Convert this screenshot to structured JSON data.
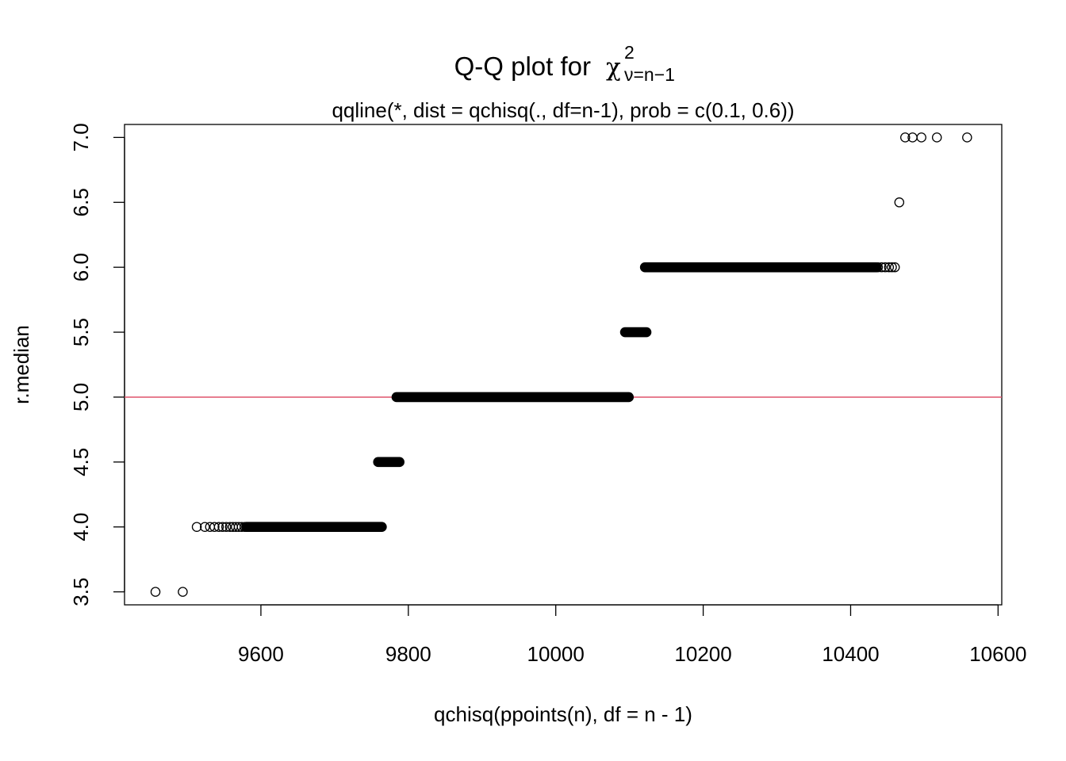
{
  "chart_data": {
    "type": "scatter",
    "title": {
      "text": "Q-Q plot for",
      "symbol": "χ",
      "superscript": "2",
      "subscript": "ν=n−1"
    },
    "subtitle": "qqline(*, dist = qchisq(., df=n-1), prob = c(0.1, 0.6))",
    "xlabel": "qchisq(ppoints(n), df = n - 1)",
    "ylabel": "r.median",
    "xlim": [
      9415,
      10605
    ],
    "ylim": [
      3.4,
      7.1
    ],
    "x_ticks": [
      9600,
      9800,
      10000,
      10200,
      10400,
      10600
    ],
    "x_tick_labels": [
      "9600",
      "9800",
      "10000",
      "10200",
      "10400",
      "10600"
    ],
    "y_ticks": [
      3.5,
      4.0,
      4.5,
      5.0,
      5.5,
      6.0,
      6.5,
      7.0
    ],
    "y_tick_labels": [
      "3.5",
      "4.0",
      "4.5",
      "5.0",
      "5.5",
      "6.0",
      "6.5",
      "7.0"
    ],
    "grid": false,
    "legend": "none",
    "point_color": "#000000",
    "qqline_color": "#DF536B",
    "qqline": {
      "slope": 0,
      "intercept": 5.0
    },
    "points": [
      {
        "x": 9457,
        "y": 3.5
      },
      {
        "x": 9494,
        "y": 3.5
      },
      {
        "x": 9513,
        "y": 4.0
      },
      {
        "x": 9524,
        "y": 4.0
      },
      {
        "x": 9531,
        "y": 4.0
      },
      {
        "x": 9537,
        "y": 4.0
      },
      {
        "x": 9543,
        "y": 4.0
      },
      {
        "x": 9548,
        "y": 4.0
      },
      {
        "x": 9553,
        "y": 4.0
      },
      {
        "x": 9558,
        "y": 4.0
      },
      {
        "x": 9562,
        "y": 4.0
      },
      {
        "x": 9566,
        "y": 4.0
      },
      {
        "x": 9570,
        "y": 4.0
      },
      {
        "x": 9574,
        "y": 4.0
      },
      {
        "x": 9578,
        "y": 4.0
      },
      {
        "x": 10437,
        "y": 6.0
      },
      {
        "x": 10442,
        "y": 6.0
      },
      {
        "x": 10447,
        "y": 6.0
      },
      {
        "x": 10452,
        "y": 6.0
      },
      {
        "x": 10456,
        "y": 6.0
      },
      {
        "x": 10460,
        "y": 6.0
      },
      {
        "x": 10466,
        "y": 6.5
      },
      {
        "x": 10474,
        "y": 7.0
      },
      {
        "x": 10484,
        "y": 7.0
      },
      {
        "x": 10496,
        "y": 7.0
      },
      {
        "x": 10517,
        "y": 7.0
      },
      {
        "x": 10558,
        "y": 7.0
      }
    ],
    "dense_runs": [
      {
        "y": 4.0,
        "x_from": 9580,
        "x_to": 9764
      },
      {
        "y": 4.5,
        "x_from": 9759,
        "x_to": 9788
      },
      {
        "y": 5.0,
        "x_from": 9784,
        "x_to": 10099
      },
      {
        "y": 5.5,
        "x_from": 10094,
        "x_to": 10123
      },
      {
        "y": 6.0,
        "x_from": 10121,
        "x_to": 10435
      }
    ]
  }
}
